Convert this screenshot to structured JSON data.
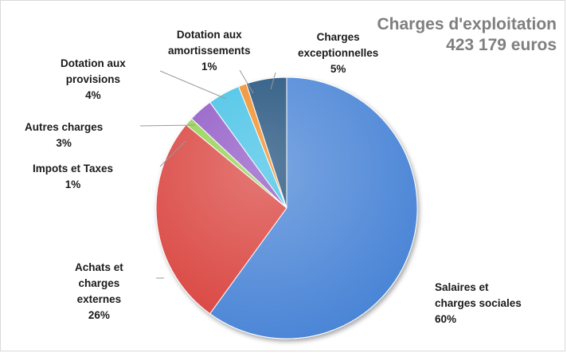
{
  "chart_data": {
    "type": "pie",
    "title": "Charges d'exploitation",
    "subtitle": "423 179 euros",
    "slices": [
      {
        "name": "Salaires et charges sociales",
        "label_lines": [
          "Salaires et",
          "charges sociales"
        ],
        "percent_label": "60%",
        "value": 60,
        "color": "#4a84d6"
      },
      {
        "name": "Achats et charges externes",
        "label_lines": [
          "Achats et",
          "charges",
          "externes"
        ],
        "percent_label": "26%",
        "value": 26,
        "color": "#d9423e"
      },
      {
        "name": "Impots et Taxes",
        "label_lines": [
          "Impots et Taxes"
        ],
        "percent_label": "1%",
        "value": 1,
        "color": "#92d050"
      },
      {
        "name": "Autres charges",
        "label_lines": [
          "Autres charges"
        ],
        "percent_label": "3%",
        "value": 3,
        "color": "#8e54c4"
      },
      {
        "name": "Dotation aux provisions",
        "label_lines": [
          "Dotation aux",
          "provisions"
        ],
        "percent_label": "4%",
        "value": 4,
        "color": "#3fc0e6"
      },
      {
        "name": "Dotation aux amortissements",
        "label_lines": [
          "Dotation aux",
          "amortissements"
        ],
        "percent_label": "1%",
        "value": 1,
        "color": "#f08a24"
      },
      {
        "name": "Charges exceptionnelles",
        "label_lines": [
          "Charges",
          "exceptionnelles"
        ],
        "percent_label": "5%",
        "value": 5,
        "color": "#1f4e79"
      }
    ],
    "legend": "none"
  }
}
